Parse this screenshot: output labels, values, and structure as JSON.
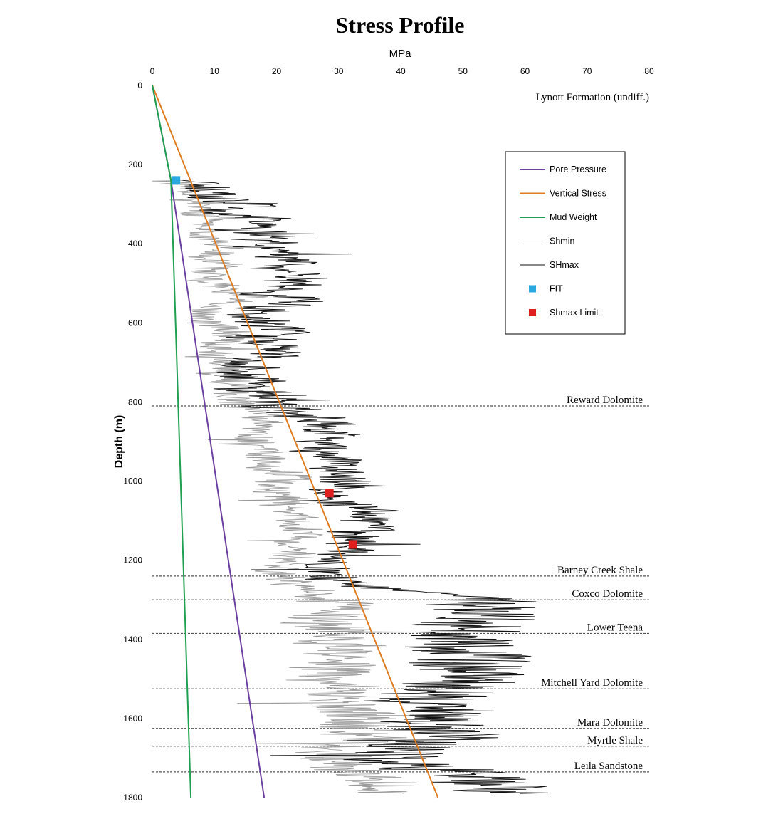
{
  "chart_data": {
    "type": "line",
    "title": "Stress Profile",
    "xlabel": "MPa",
    "ylabel": "Depth (m)",
    "xlim": [
      0,
      80
    ],
    "ylim": [
      0,
      1800
    ],
    "x_ticks": [
      "0",
      "10",
      "20",
      "30",
      "40",
      "50",
      "60",
      "70",
      "80"
    ],
    "y_ticks": [
      "0",
      "200",
      "400",
      "600",
      "800",
      "1000",
      "1200",
      "1400",
      "1600",
      "1800"
    ],
    "grid": false,
    "legend_position": "top-right",
    "legend": [
      {
        "key": "pore",
        "label": "Pore Pressure",
        "color": "#6a3fa0",
        "kind": "line"
      },
      {
        "key": "vertical",
        "label": "Vertical Stress",
        "color": "#e07b20",
        "kind": "line"
      },
      {
        "key": "mud",
        "label": "Mud Weight",
        "color": "#1fa050",
        "kind": "line"
      },
      {
        "key": "shmin",
        "label": "Shmin",
        "color": "#999999",
        "kind": "thin-line"
      },
      {
        "key": "shmax",
        "label": "SHmax",
        "color": "#111111",
        "kind": "thin-line"
      },
      {
        "key": "fit",
        "label": "FIT",
        "color": "#2aa9e0",
        "kind": "marker"
      },
      {
        "key": "limit",
        "label": "Shmax Limit",
        "color": "#e02020",
        "kind": "marker"
      }
    ],
    "series": [
      {
        "name": "Pore Pressure",
        "color": "#6a3fa0",
        "depth": [
          0,
          240,
          1800
        ],
        "mpa": [
          0,
          3,
          18
        ]
      },
      {
        "name": "Vertical Stress",
        "color": "#e07b20",
        "depth": [
          0,
          1800
        ],
        "mpa": [
          0,
          46
        ]
      },
      {
        "name": "Mud Weight",
        "color": "#1fa050",
        "depth": [
          0,
          240,
          1800
        ],
        "mpa": [
          0,
          3,
          6.2
        ]
      },
      {
        "name": "Shmin",
        "color": "#999999",
        "depth": [
          240,
          300,
          400,
          500,
          600,
          700,
          800,
          900,
          1000,
          1100,
          1200,
          1250,
          1300,
          1400,
          1500,
          1600,
          1700,
          1790
        ],
        "mpa": [
          5,
          8,
          11,
          10,
          11,
          12,
          13,
          18,
          20,
          23,
          21,
          22,
          28,
          29,
          30,
          31,
          31,
          33
        ]
      },
      {
        "name": "SHmax",
        "color": "#111111",
        "depth": [
          240,
          300,
          400,
          500,
          600,
          650,
          700,
          750,
          800,
          850,
          900,
          1000,
          1100,
          1150,
          1200,
          1250,
          1300,
          1350,
          1400,
          1500,
          1550,
          1600,
          1650,
          1700,
          1750,
          1790
        ],
        "mpa": [
          7,
          12,
          20,
          21,
          20,
          22,
          19,
          17,
          19,
          27,
          30,
          31,
          33,
          33,
          29,
          28,
          52,
          53,
          51,
          52,
          46,
          50,
          46,
          40,
          55,
          54
        ]
      }
    ],
    "points": [
      {
        "name": "FIT",
        "depth": 240,
        "mpa": 3.8,
        "color": "#2aa9e0"
      },
      {
        "name": "Shmax Limit",
        "depth": 1030,
        "mpa": 28.5,
        "color": "#e02020"
      },
      {
        "name": "Shmax Limit",
        "depth": 1160,
        "mpa": 32.3,
        "color": "#e02020"
      }
    ],
    "formations": [
      {
        "name": "Lynott Formation (undiff.)",
        "depth": 0,
        "line": false
      },
      {
        "name": "Reward Dolomite",
        "depth": 810,
        "line": true
      },
      {
        "name": "Barney Creek Shale",
        "depth": 1240,
        "line": true
      },
      {
        "name": "Coxco Dolomite",
        "depth": 1300,
        "line": true
      },
      {
        "name": "Lower Teena",
        "depth": 1385,
        "line": true
      },
      {
        "name": "Mitchell Yard Dolomite",
        "depth": 1525,
        "line": true
      },
      {
        "name": "Mara Dolomite",
        "depth": 1625,
        "line": true
      },
      {
        "name": "Myrtle Shale",
        "depth": 1670,
        "line": true
      },
      {
        "name": "Leila Sandstone",
        "depth": 1735,
        "line": true
      }
    ]
  }
}
